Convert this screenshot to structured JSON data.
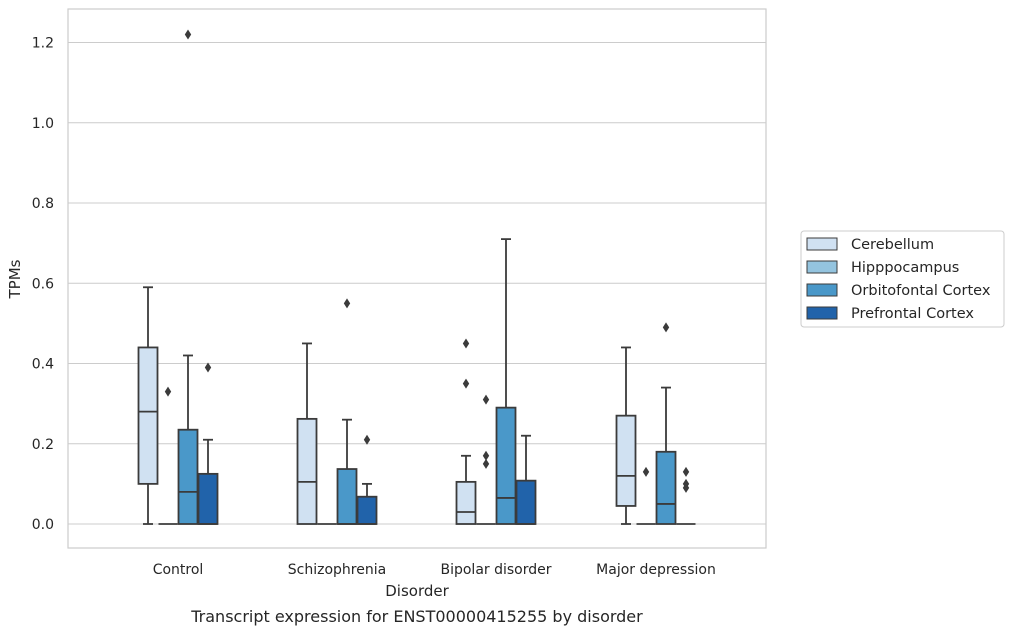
{
  "caption": "Transcript expression for ENST00000415255 by disorder",
  "chart_data": {
    "type": "boxplot",
    "xlabel": "Disorder",
    "ylabel": "TPMs",
    "ylim": [
      -0.06,
      1.28
    ],
    "yticks": [
      0.0,
      0.2,
      0.4,
      0.6,
      0.8,
      1.0,
      1.2
    ],
    "ytick_labels": [
      "0.0",
      "0.2",
      "0.4",
      "0.6",
      "0.8",
      "1.0",
      "1.2"
    ],
    "grid": true,
    "legend_position": "right",
    "categories": [
      "Control",
      "Schizophrenia",
      "Bipolar disorder",
      "Major depression"
    ],
    "series": [
      {
        "name": "Cerebellum",
        "color": "#d0e1f2",
        "boxes": [
          {
            "whislo": 0.0,
            "q1": 0.1,
            "med": 0.28,
            "q3": 0.44,
            "whishi": 0.59,
            "fliers": []
          },
          {
            "whislo": 0.0,
            "q1": 0.0,
            "med": 0.105,
            "q3": 0.262,
            "whishi": 0.45,
            "fliers": []
          },
          {
            "whislo": 0.0,
            "q1": 0.0,
            "med": 0.03,
            "q3": 0.105,
            "whishi": 0.17,
            "fliers": [
              0.45,
              0.35
            ]
          },
          {
            "whislo": 0.0,
            "q1": 0.045,
            "med": 0.12,
            "q3": 0.27,
            "whishi": 0.44,
            "fliers": []
          }
        ]
      },
      {
        "name": "Hipppocampus",
        "color": "#94c4df",
        "boxes": [
          {
            "whislo": 0.0,
            "q1": 0.0,
            "med": 0.0,
            "q3": 0.0,
            "whishi": 0.0,
            "fliers": [
              0.33
            ]
          },
          {
            "whislo": 0.0,
            "q1": 0.0,
            "med": 0.0,
            "q3": 0.0,
            "whishi": 0.0,
            "fliers": []
          },
          {
            "whislo": 0.0,
            "q1": 0.0,
            "med": 0.0,
            "q3": 0.0,
            "whishi": 0.0,
            "fliers": [
              0.31,
              0.17,
              0.15
            ]
          },
          {
            "whislo": 0.0,
            "q1": 0.0,
            "med": 0.0,
            "q3": 0.0,
            "whishi": 0.0,
            "fliers": [
              0.13
            ]
          }
        ]
      },
      {
        "name": "Orbitofontal Cortex",
        "color": "#4a98c9",
        "boxes": [
          {
            "whislo": 0.0,
            "q1": 0.0,
            "med": 0.08,
            "q3": 0.235,
            "whishi": 0.42,
            "fliers": [
              1.22
            ]
          },
          {
            "whislo": 0.0,
            "q1": 0.0,
            "med": 0.0,
            "q3": 0.137,
            "whishi": 0.26,
            "fliers": [
              0.55
            ]
          },
          {
            "whislo": 0.0,
            "q1": 0.0,
            "med": 0.065,
            "q3": 0.29,
            "whishi": 0.71,
            "fliers": []
          },
          {
            "whislo": 0.0,
            "q1": 0.0,
            "med": 0.05,
            "q3": 0.18,
            "whishi": 0.34,
            "fliers": [
              0.49
            ]
          }
        ]
      },
      {
        "name": "Prefrontal Cortex",
        "color": "#2163aa",
        "boxes": [
          {
            "whislo": 0.0,
            "q1": 0.0,
            "med": 0.0,
            "q3": 0.125,
            "whishi": 0.21,
            "fliers": [
              0.39
            ]
          },
          {
            "whislo": 0.0,
            "q1": 0.0,
            "med": 0.0,
            "q3": 0.068,
            "whishi": 0.1,
            "fliers": [
              0.21
            ]
          },
          {
            "whislo": 0.0,
            "q1": 0.0,
            "med": 0.0,
            "q3": 0.108,
            "whishi": 0.22,
            "fliers": []
          },
          {
            "whislo": 0.0,
            "q1": 0.0,
            "med": 0.0,
            "q3": 0.0,
            "whishi": 0.0,
            "fliers": [
              0.13,
              0.1,
              0.09
            ]
          }
        ]
      }
    ]
  }
}
